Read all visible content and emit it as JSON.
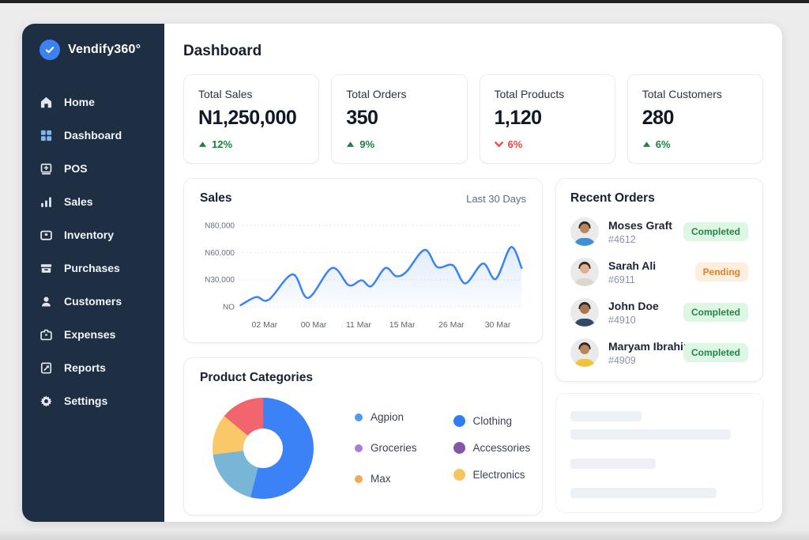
{
  "brand": {
    "name": "Vendify360°",
    "logo_icon": "check-badge-icon",
    "logo_color": "#3b82f6"
  },
  "sidebar": {
    "bg_color": "#1e2e43",
    "items": [
      {
        "icon": "home-icon",
        "label": "Home",
        "active": false
      },
      {
        "icon": "dashboard-grid-icon",
        "label": "Dashboard",
        "active": true
      },
      {
        "icon": "pos-terminal-icon",
        "label": "POS",
        "active": false
      },
      {
        "icon": "sales-bars-icon",
        "label": "Sales",
        "active": false
      },
      {
        "icon": "inventory-box-icon",
        "label": "Inventory",
        "active": false
      },
      {
        "icon": "purchases-archive-icon",
        "label": "Purchases",
        "active": false
      },
      {
        "icon": "customers-person-icon",
        "label": "Customers",
        "active": false
      },
      {
        "icon": "expenses-briefcase-icon",
        "label": "Expenses",
        "active": false
      },
      {
        "icon": "reports-doc-icon",
        "label": "Reports",
        "active": false
      },
      {
        "icon": "settings-gear-icon",
        "label": "Settings",
        "active": false
      }
    ]
  },
  "header": {
    "title": "Dashboard"
  },
  "stats": [
    {
      "label": "Total Sales",
      "value": "N1,250,000",
      "delta": "12%",
      "direction": "up"
    },
    {
      "label": "Total Orders",
      "value": "350",
      "delta": "9%",
      "direction": "up"
    },
    {
      "label": "Total Products",
      "value": "1,120",
      "delta": "6%",
      "direction": "down"
    },
    {
      "label": "Total Customers",
      "value": "280",
      "delta": "6%",
      "direction": "up"
    }
  ],
  "sales_card": {
    "title": "Sales",
    "range_label": "Last 30 Days"
  },
  "recent_orders": {
    "title": "Recent Orders",
    "orders": [
      {
        "name": "Moses Graft",
        "order_id": "#4612",
        "status": "Completed",
        "shirt_color": "#3f8fd8",
        "skin": "#b9855c"
      },
      {
        "name": "Sarah Ali",
        "order_id": "#6911",
        "status": "Pending",
        "shirt_color": "#ddd6cf",
        "skin": "#e0b18c"
      },
      {
        "name": "John Doe",
        "order_id": "#4910",
        "status": "Completed",
        "shirt_color": "#2e4a66",
        "skin": "#a9764f"
      },
      {
        "name": "Maryam Ibrahim",
        "order_id": "#4909",
        "status": "Completed",
        "shirt_color": "#f0c33c",
        "skin": "#b9855c"
      }
    ],
    "badge_colors": {
      "Completed": {
        "bg": "#def7e4",
        "text": "#27824a"
      },
      "Pending": {
        "bg": "#fdeedd",
        "text": "#df8128"
      }
    }
  },
  "categories_card": {
    "title": "Product Categories",
    "legend_col1": [
      {
        "label": "Agpion",
        "color": "#4d9bf5"
      },
      {
        "label": "Groceries",
        "color": "#a97fd6"
      },
      {
        "label": "Max",
        "color": "#f5a855"
      }
    ],
    "legend_col2": [
      {
        "label": "Clothing",
        "color": "#2f7ff0"
      },
      {
        "label": "Accessories",
        "color": "#8456a8"
      },
      {
        "label": "Electronics",
        "color": "#f7c55e"
      }
    ]
  },
  "skeleton_card": {
    "bar_widths_pct": [
      40,
      90,
      48,
      82
    ]
  },
  "chart_data": [
    {
      "type": "area",
      "title": "Sales",
      "subtitle": "Last 30 Days",
      "line_color": "#3b82f6",
      "grid": true,
      "y_ticks": [
        {
          "label": "N80,000",
          "value": 80000
        },
        {
          "label": "N60,000",
          "value": 60000
        },
        {
          "label": "N30,000",
          "value": 30000
        },
        {
          "label": "NO",
          "value": 0
        }
      ],
      "x_ticks": [
        "02 Mar",
        "00 Mar",
        "11 Mar",
        "15 Mar",
        "26 Mar",
        "30 Mar"
      ],
      "points": [
        [
          0.0,
          2000
        ],
        [
          0.055,
          11000
        ],
        [
          0.1,
          8000
        ],
        [
          0.185,
          36000
        ],
        [
          0.24,
          10000
        ],
        [
          0.325,
          43000
        ],
        [
          0.385,
          24000
        ],
        [
          0.43,
          29500
        ],
        [
          0.465,
          23000
        ],
        [
          0.515,
          43000
        ],
        [
          0.553,
          34000
        ],
        [
          0.59,
          39000
        ],
        [
          0.655,
          62000
        ],
        [
          0.7,
          44000
        ],
        [
          0.755,
          46000
        ],
        [
          0.8,
          26000
        ],
        [
          0.862,
          48000
        ],
        [
          0.908,
          31000
        ],
        [
          0.962,
          64000
        ],
        [
          1.0,
          43000
        ]
      ]
    },
    {
      "type": "donut",
      "title": "Product Categories",
      "slices": [
        {
          "color": "#3b82f6",
          "percent": 54
        },
        {
          "color": "#79b5d6",
          "percent": 19
        },
        {
          "color": "#f9c868",
          "percent": 13
        },
        {
          "color": "#f2646e",
          "percent": 14
        }
      ]
    }
  ]
}
